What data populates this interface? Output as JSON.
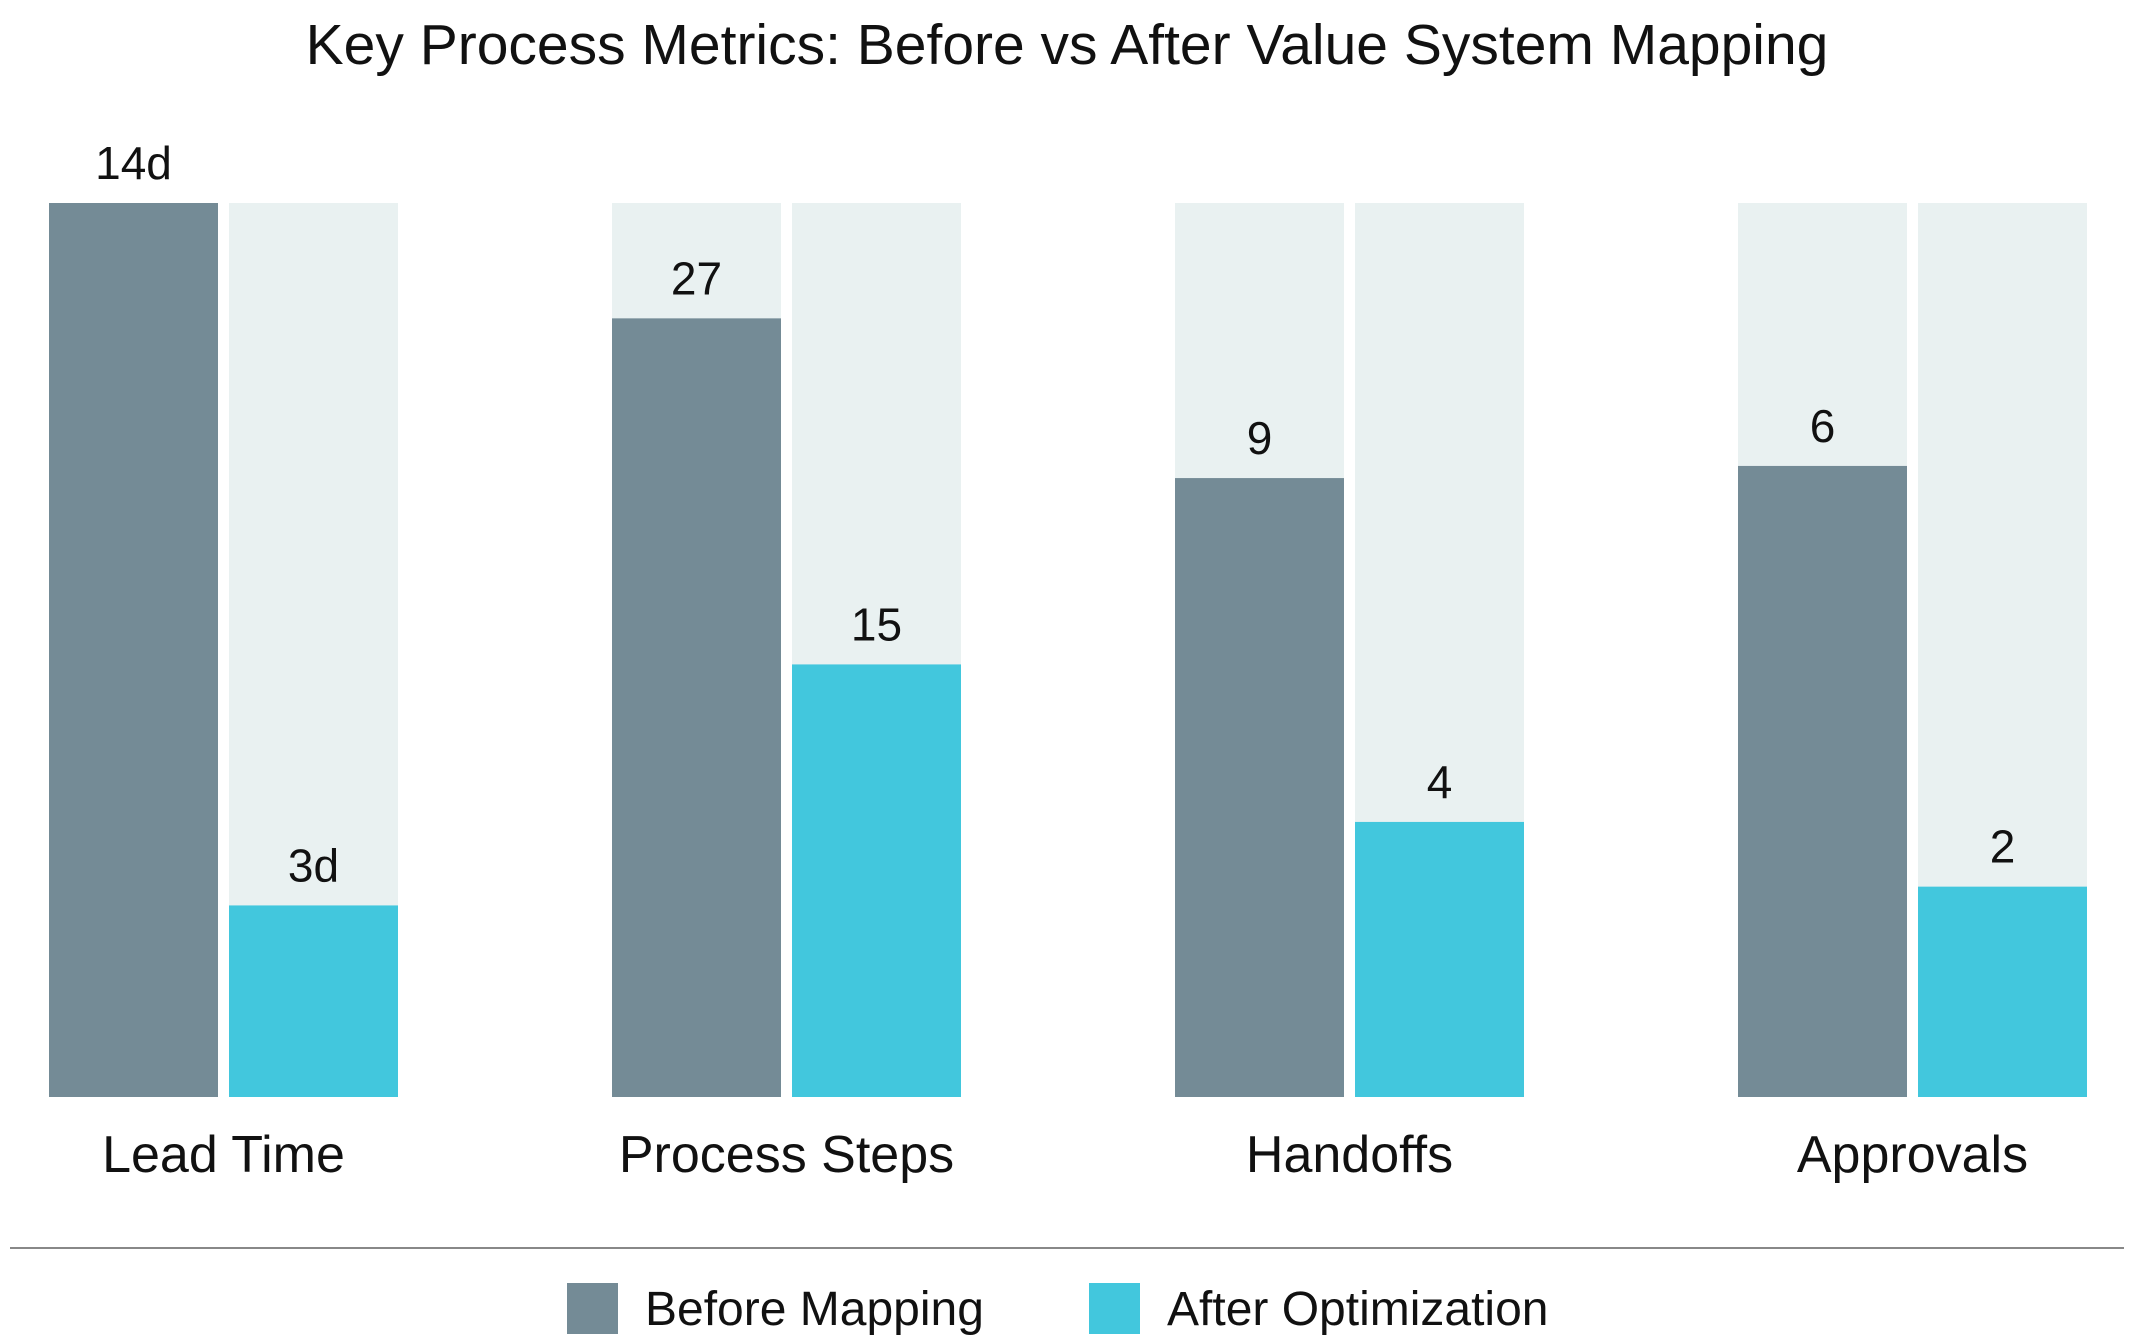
{
  "chart_data": {
    "type": "bar",
    "title": "Key Process Metrics: Before vs After Value System Mapping",
    "categories": [
      "Lead Time",
      "Process Steps",
      "Handoffs",
      "Approvals"
    ],
    "series": [
      {
        "name": "Before Mapping",
        "color": "#748b96",
        "values": [
          14,
          27,
          9,
          6
        ],
        "labels": [
          "14d",
          "27",
          "9",
          "6"
        ]
      },
      {
        "name": "After Optimization",
        "color": "#42c7dd",
        "values": [
          3,
          15,
          4,
          2
        ],
        "labels": [
          "3d",
          "15",
          "4",
          "2"
        ]
      }
    ],
    "category_max": [
      14,
      31,
      13,
      8.5
    ],
    "track_color": "#e9f1f1",
    "legend": "bottom-center",
    "grid": false
  }
}
